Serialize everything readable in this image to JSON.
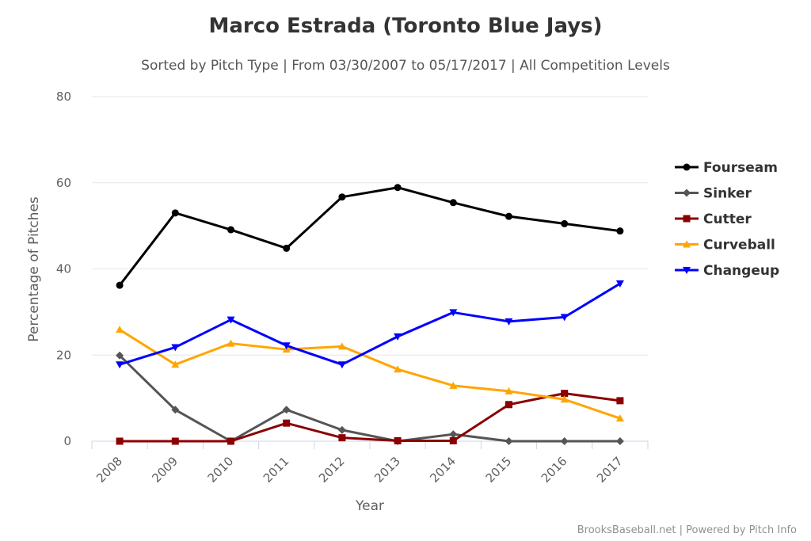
{
  "chart_data": {
    "type": "line",
    "title": "Marco Estrada (Toronto Blue Jays)",
    "subtitle": "Sorted by Pitch Type | From 03/30/2007 to 05/17/2017 | All Competition Levels",
    "xlabel": "Year",
    "ylabel": "Percentage of Pitches",
    "categories": [
      "2008",
      "2009",
      "2010",
      "2011",
      "2012",
      "2013",
      "2014",
      "2015",
      "2016",
      "2017"
    ],
    "ylim": [
      0,
      80
    ],
    "yticks": [
      0,
      20,
      40,
      60,
      80
    ],
    "grid": true,
    "legend_position": "right",
    "series": [
      {
        "name": "Fourseam",
        "color": "#000000",
        "marker": "circle",
        "values": [
          36.2,
          53.0,
          49.1,
          44.8,
          56.7,
          58.9,
          55.4,
          52.2,
          50.5,
          48.8
        ]
      },
      {
        "name": "Sinker",
        "color": "#555555",
        "marker": "diamond",
        "values": [
          19.9,
          7.3,
          0.0,
          7.3,
          2.6,
          0.0,
          1.6,
          0.0,
          0.0,
          0.0
        ]
      },
      {
        "name": "Cutter",
        "color": "#8B0000",
        "marker": "square",
        "values": [
          0.0,
          0.0,
          0.0,
          4.2,
          0.8,
          0.1,
          0.1,
          8.5,
          11.1,
          9.4
        ]
      },
      {
        "name": "Curveball",
        "color": "#FFA500",
        "marker": "triangle",
        "values": [
          25.9,
          17.8,
          22.7,
          21.3,
          22.0,
          16.7,
          12.9,
          11.6,
          9.7,
          5.3
        ]
      },
      {
        "name": "Changeup",
        "color": "#0000FF",
        "marker": "triangle-down",
        "values": [
          17.8,
          21.8,
          28.2,
          22.2,
          17.8,
          24.3,
          29.9,
          27.8,
          28.8,
          36.6
        ]
      }
    ]
  },
  "credits": "BrooksBaseball.net | Powered by Pitch Info"
}
